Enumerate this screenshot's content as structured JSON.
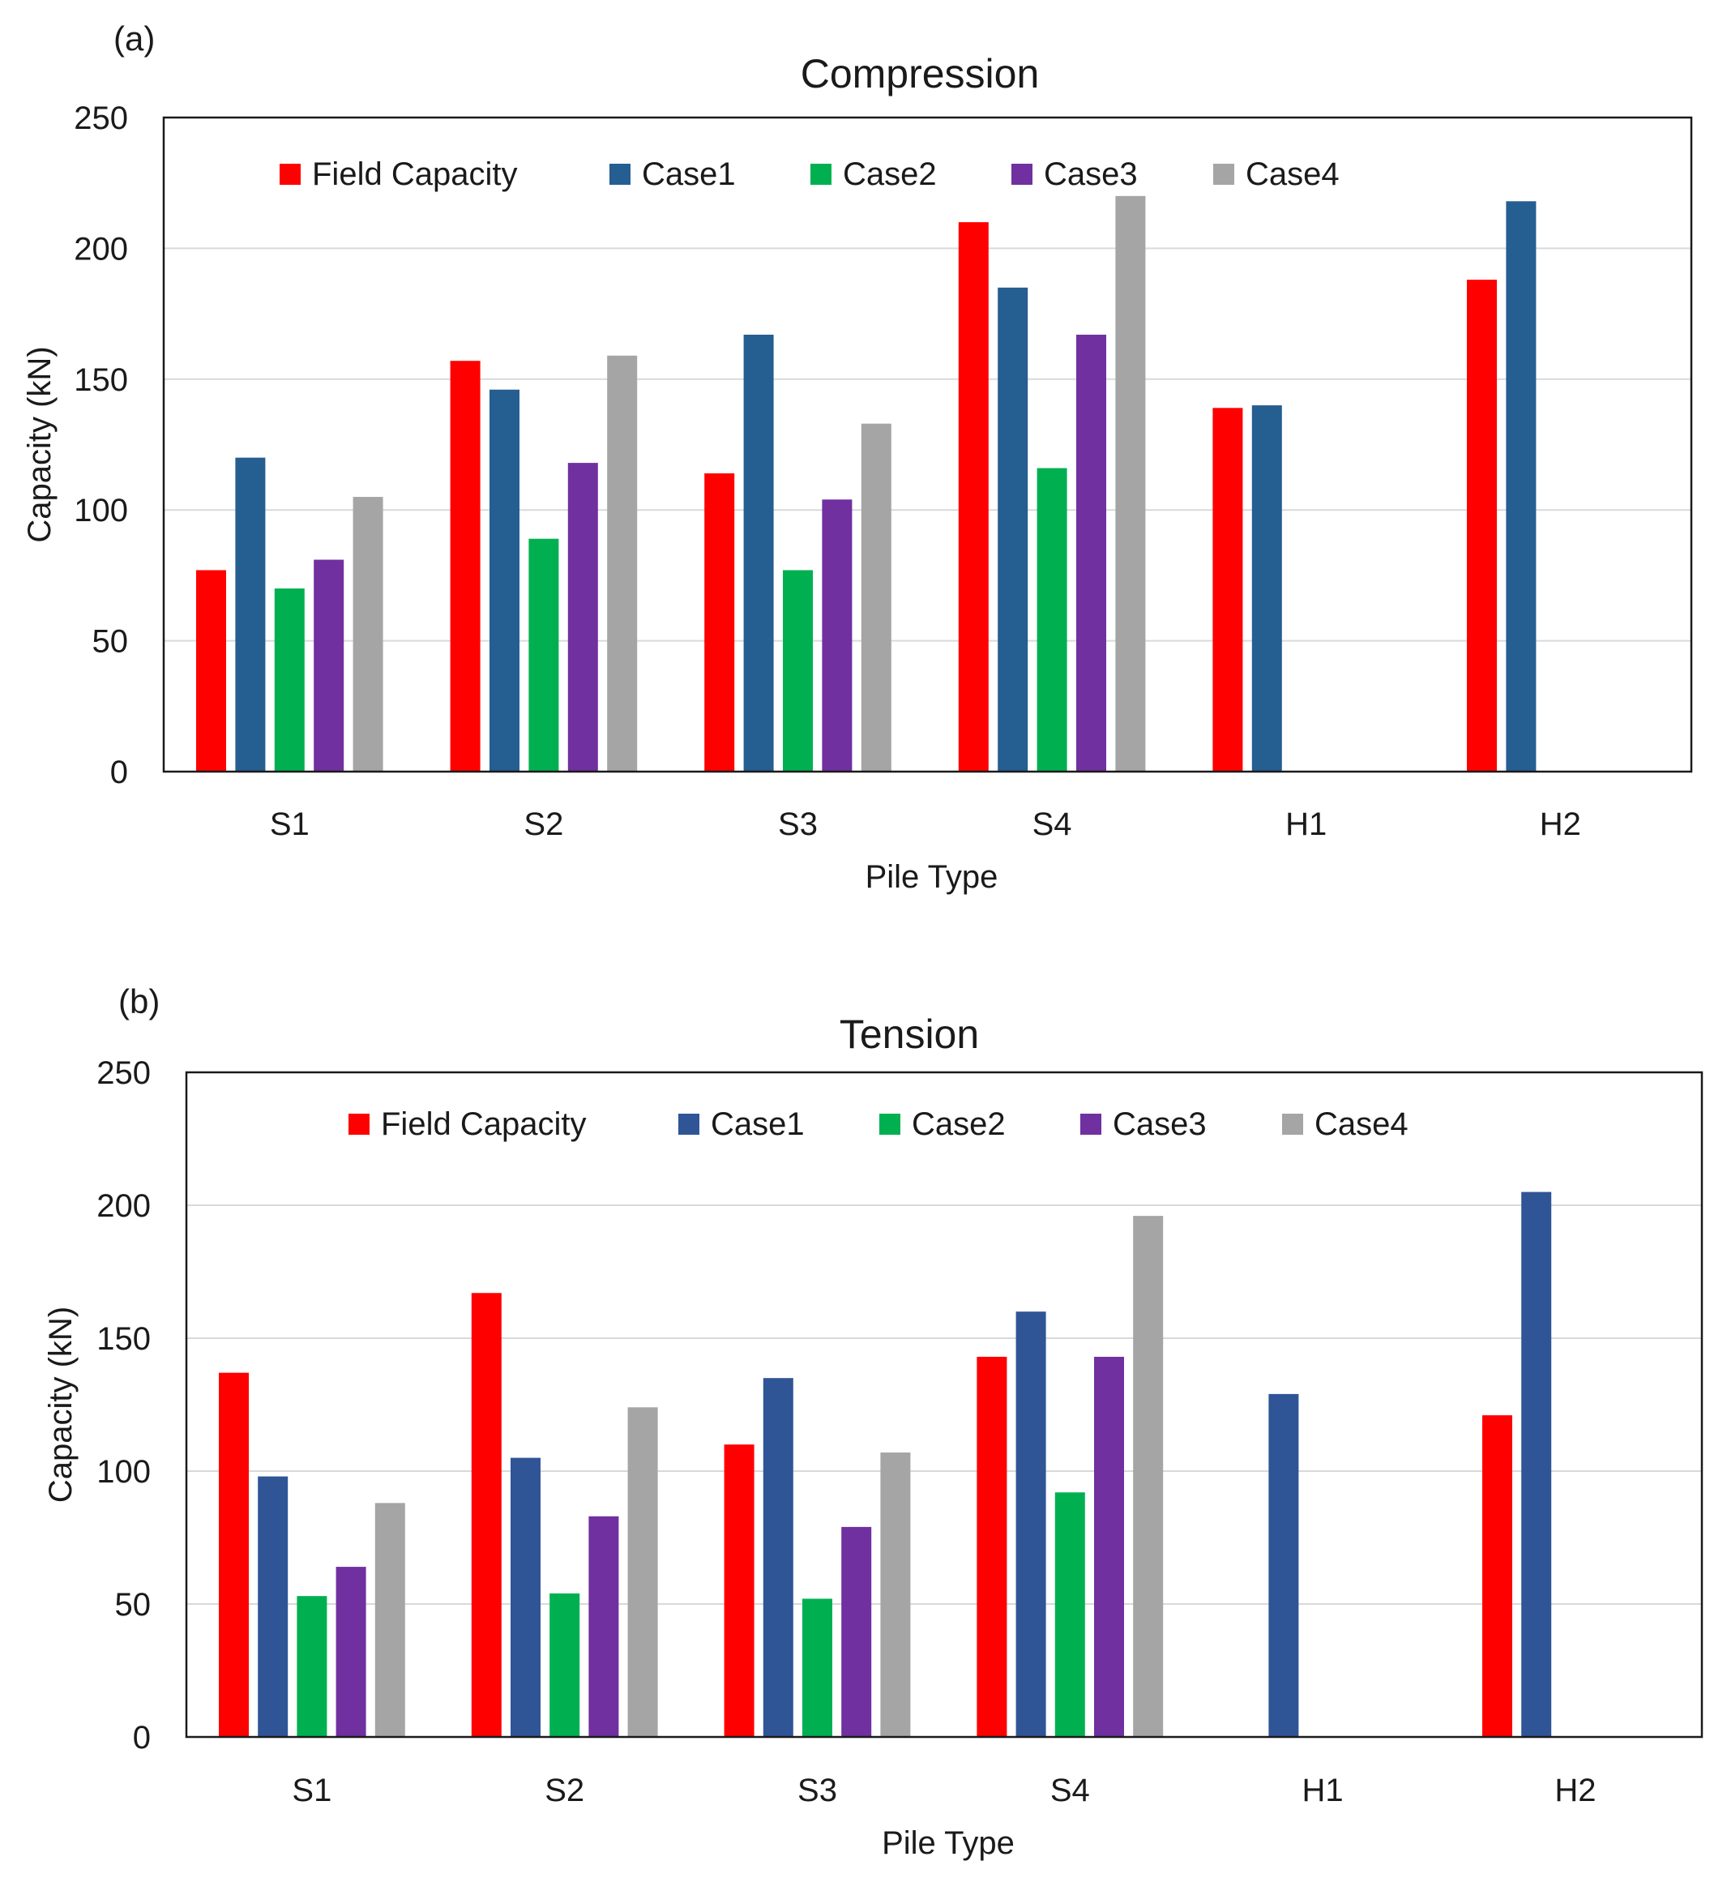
{
  "chart_data": [
    {
      "type": "bar",
      "panel_label": "(a)",
      "title": "Compression",
      "xlabel": "Pile Type",
      "ylabel": "Capacity (kN)",
      "ylim": [
        0,
        250
      ],
      "yticks": [
        0,
        50,
        100,
        150,
        200,
        250
      ],
      "grid": true,
      "legend_position": "top",
      "categories": [
        "S1",
        "S2",
        "S3",
        "S4",
        "H1",
        "H2"
      ],
      "series": [
        {
          "name": "Field Capacity",
          "color": "#ff0000",
          "values": [
            77,
            157,
            114,
            210,
            139,
            188
          ]
        },
        {
          "name": "Case1",
          "color": "#255e91",
          "values": [
            120,
            146,
            167,
            185,
            140,
            218
          ]
        },
        {
          "name": "Case2",
          "color": "#00b050",
          "values": [
            70,
            89,
            77,
            116,
            null,
            null
          ]
        },
        {
          "name": "Case3",
          "color": "#7030a0",
          "values": [
            81,
            118,
            104,
            167,
            null,
            null
          ]
        },
        {
          "name": "Case4",
          "color": "#a5a5a5",
          "values": [
            105,
            159,
            133,
            220,
            null,
            null
          ]
        }
      ]
    },
    {
      "type": "bar",
      "panel_label": "(b)",
      "title": "Tension",
      "xlabel": "Pile Type",
      "ylabel": "Capacity (kN)",
      "ylim": [
        0,
        250
      ],
      "yticks": [
        0,
        50,
        100,
        150,
        200,
        250
      ],
      "grid": true,
      "legend_position": "top",
      "categories": [
        "S1",
        "S2",
        "S3",
        "S4",
        "H1",
        "H2"
      ],
      "series": [
        {
          "name": "Field Capacity",
          "color": "#ff0000",
          "values": [
            137,
            167,
            110,
            143,
            null,
            121
          ]
        },
        {
          "name": "Case1",
          "color": "#2f5597",
          "values": [
            98,
            105,
            135,
            160,
            129,
            205
          ]
        },
        {
          "name": "Case2",
          "color": "#00b050",
          "values": [
            53,
            54,
            52,
            92,
            null,
            null
          ]
        },
        {
          "name": "Case3",
          "color": "#7030a0",
          "values": [
            64,
            83,
            79,
            143,
            null,
            null
          ]
        },
        {
          "name": "Case4",
          "color": "#a5a5a5",
          "values": [
            88,
            124,
            107,
            196,
            null,
            null
          ]
        }
      ]
    }
  ]
}
